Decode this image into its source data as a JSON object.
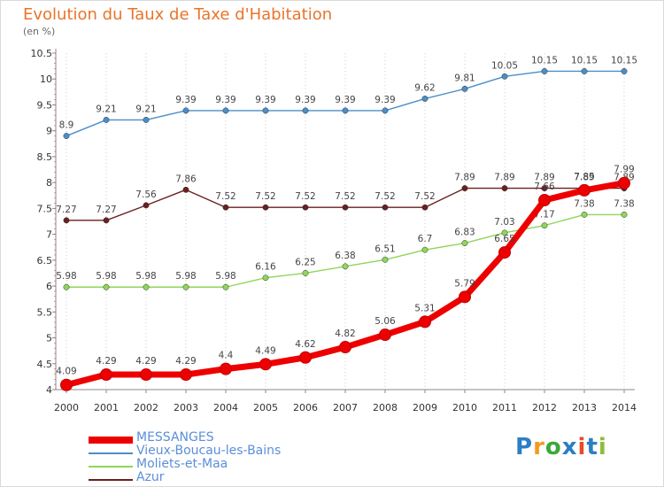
{
  "chart_data": {
    "type": "line",
    "title": "Evolution du Taux de Taxe d'Habitation",
    "unit_label": "(en %)",
    "x": [
      "2000",
      "2001",
      "2002",
      "2003",
      "2004",
      "2005",
      "2006",
      "2007",
      "2008",
      "2009",
      "2010",
      "2011",
      "2012",
      "2013",
      "2014"
    ],
    "y_ticks": [
      "4",
      "4.5",
      "5",
      "5.5",
      "6",
      "6.5",
      "7",
      "7.5",
      "8",
      "8.5",
      "9",
      "9.5",
      "10",
      "10.5"
    ],
    "ylim": [
      4,
      10.5
    ],
    "grid": "vertical dotted",
    "legend_position": "bottom-left",
    "series": [
      {
        "name": "Vieux-Boucau-les-Bains",
        "color": "#4a8ec9",
        "values": [
          8.9,
          9.21,
          9.21,
          9.39,
          9.39,
          9.39,
          9.39,
          9.39,
          9.39,
          9.62,
          9.81,
          10.05,
          10.15,
          10.15,
          10.15
        ],
        "labels": [
          "8.9",
          "9.21",
          "9.21",
          "9.39",
          "9.39",
          "9.39",
          "9.39",
          "9.39",
          "9.39",
          "9.62",
          "9.81",
          "10.05",
          "10.15",
          "10.15",
          "10.15"
        ]
      },
      {
        "name": "Azur",
        "color": "#6b1f1f",
        "values": [
          7.27,
          7.27,
          7.56,
          7.86,
          7.52,
          7.52,
          7.52,
          7.52,
          7.52,
          7.52,
          7.89,
          7.89,
          7.89,
          7.89,
          7.89
        ],
        "labels": [
          "7.27",
          "7.27",
          "7.56",
          "7.86",
          "7.52",
          "7.52",
          "7.52",
          "7.52",
          "7.52",
          "7.52",
          "7.89",
          "7.89",
          "7.89",
          "7.89",
          "7.89"
        ]
      },
      {
        "name": "Moliets-et-Maa",
        "color": "#8fd65a",
        "values": [
          5.98,
          5.98,
          5.98,
          5.98,
          5.98,
          6.16,
          6.25,
          6.38,
          6.51,
          6.7,
          6.83,
          7.03,
          7.17,
          7.38,
          7.38
        ],
        "labels": [
          "5.98",
          "5.98",
          "5.98",
          "5.98",
          "5.98",
          "6.16",
          "6.25",
          "6.38",
          "6.51",
          "6.7",
          "6.83",
          "7.03",
          "7.17",
          "7.38",
          "7.38"
        ]
      },
      {
        "name": "MESSANGES",
        "color": "#ee0000",
        "values": [
          4.09,
          4.29,
          4.29,
          4.29,
          4.4,
          4.49,
          4.62,
          4.82,
          5.06,
          5.31,
          5.79,
          6.65,
          7.66,
          7.85,
          7.99
        ],
        "labels": [
          "4.09",
          "4.29",
          "4.29",
          "4.29",
          "4.4",
          "4.49",
          "4.62",
          "4.82",
          "5.06",
          "5.31",
          "5.79",
          "6.65",
          "7.66",
          "7.85",
          "7.99"
        ]
      }
    ],
    "legend_order": [
      "MESSANGES",
      "Vieux-Boucau-les-Bains",
      "Moliets-et-Maa",
      "Azur"
    ]
  },
  "logo": {
    "text": "Proxiti",
    "colors": [
      "#2b7fc4",
      "#f29b20",
      "#3aa83a",
      "#2b7fc4",
      "#e84b2a",
      "#2b7fc4",
      "#8dbd3a"
    ]
  }
}
